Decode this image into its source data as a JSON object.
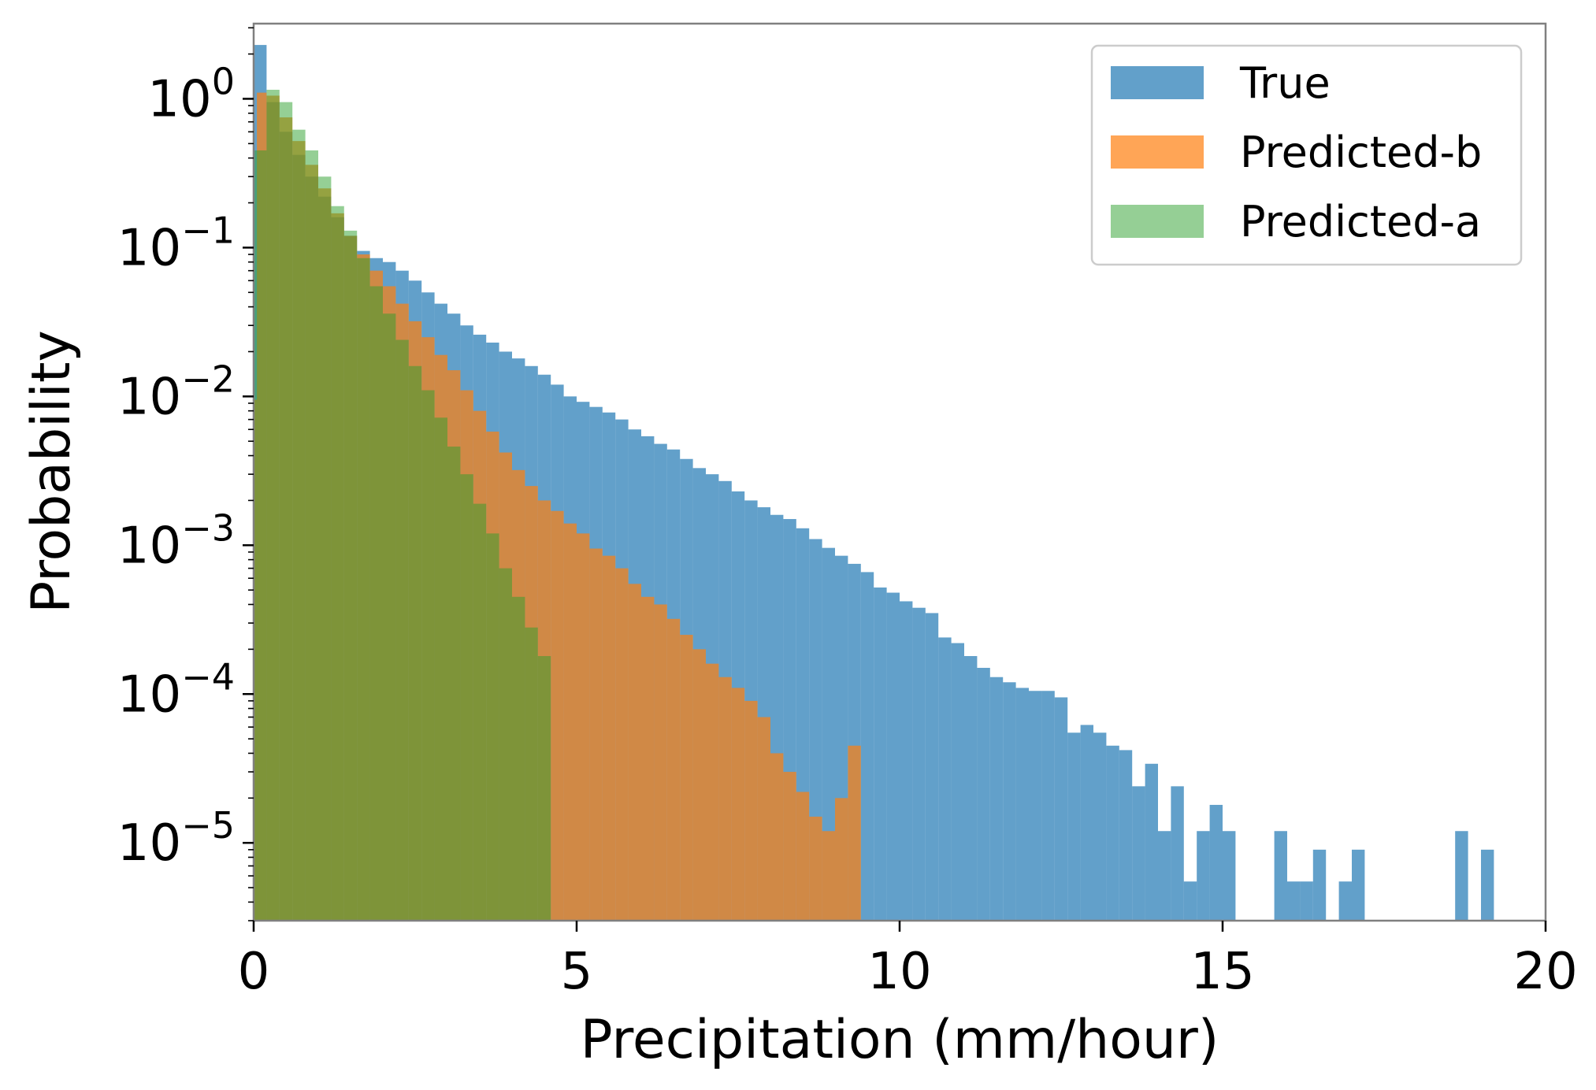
{
  "chart_data": {
    "type": "bar",
    "subtype": "histogram",
    "xlabel": "Precipitation (mm/hour)",
    "ylabel": "Probability",
    "xlim": [
      0,
      20
    ],
    "ylim": [
      3e-06,
      3.2
    ],
    "yscale": "log",
    "grid": false,
    "legend_position": "top-right",
    "x_ticks": [
      {
        "value": 0,
        "label": "0"
      },
      {
        "value": 5,
        "label": "5"
      },
      {
        "value": 10,
        "label": "10"
      },
      {
        "value": 15,
        "label": "15"
      },
      {
        "value": 20,
        "label": "20"
      }
    ],
    "y_ticks": [
      {
        "value": 1,
        "base": "10",
        "exp": "0"
      },
      {
        "value": 0.1,
        "base": "10",
        "exp": "−1"
      },
      {
        "value": 0.01,
        "base": "10",
        "exp": "−2"
      },
      {
        "value": 0.001,
        "base": "10",
        "exp": "−3"
      },
      {
        "value": 0.0001,
        "base": "10",
        "exp": "−4"
      },
      {
        "value": 1e-05,
        "base": "10",
        "exp": "−5"
      }
    ],
    "series": [
      {
        "name": "True",
        "color": "#1f77b4",
        "alpha": 0.7,
        "points": [
          [
            0.0,
            2.3
          ],
          [
            0.2,
            0.95
          ],
          [
            0.4,
            0.6
          ],
          [
            0.6,
            0.42
          ],
          [
            0.8,
            0.3
          ],
          [
            1.0,
            0.22
          ],
          [
            1.2,
            0.16
          ],
          [
            1.4,
            0.12
          ],
          [
            1.6,
            0.095
          ],
          [
            1.8,
            0.085
          ],
          [
            2.0,
            0.08
          ],
          [
            2.2,
            0.07
          ],
          [
            2.4,
            0.06
          ],
          [
            2.6,
            0.05
          ],
          [
            2.8,
            0.042
          ],
          [
            3.0,
            0.036
          ],
          [
            3.2,
            0.03
          ],
          [
            3.4,
            0.026
          ],
          [
            3.6,
            0.023
          ],
          [
            3.8,
            0.02
          ],
          [
            4.0,
            0.018
          ],
          [
            4.2,
            0.016
          ],
          [
            4.4,
            0.014
          ],
          [
            4.6,
            0.012
          ],
          [
            4.8,
            0.01
          ],
          [
            5.0,
            0.0092
          ],
          [
            5.2,
            0.0085
          ],
          [
            5.4,
            0.0078
          ],
          [
            5.6,
            0.007
          ],
          [
            5.8,
            0.006
          ],
          [
            6.0,
            0.0054
          ],
          [
            6.2,
            0.0048
          ],
          [
            6.4,
            0.0044
          ],
          [
            6.6,
            0.0038
          ],
          [
            6.8,
            0.0033
          ],
          [
            7.0,
            0.003
          ],
          [
            7.2,
            0.0027
          ],
          [
            7.4,
            0.0023
          ],
          [
            7.6,
            0.002
          ],
          [
            7.8,
            0.0018
          ],
          [
            8.0,
            0.0016
          ],
          [
            8.2,
            0.0015
          ],
          [
            8.4,
            0.0013
          ],
          [
            8.6,
            0.0011
          ],
          [
            8.8,
            0.00096
          ],
          [
            9.0,
            0.00085
          ],
          [
            9.2,
            0.00075
          ],
          [
            9.4,
            0.00066
          ],
          [
            9.6,
            0.00052
          ],
          [
            9.8,
            0.00048
          ],
          [
            10.0,
            0.00042
          ],
          [
            10.2,
            0.00038
          ],
          [
            10.4,
            0.00035
          ],
          [
            10.6,
            0.00024
          ],
          [
            10.8,
            0.00022
          ],
          [
            11.0,
            0.00018
          ],
          [
            11.2,
            0.00015
          ],
          [
            11.4,
            0.00013
          ],
          [
            11.6,
            0.00012
          ],
          [
            11.8,
            0.00011
          ],
          [
            12.0,
            0.000105
          ],
          [
            12.2,
            0.000105
          ],
          [
            12.4,
            9.5e-05
          ],
          [
            12.6,
            5.5e-05
          ],
          [
            12.8,
            6.2e-05
          ],
          [
            13.0,
            5.5e-05
          ],
          [
            13.2,
            4.5e-05
          ],
          [
            13.4,
            4.2e-05
          ],
          [
            13.6,
            2.4e-05
          ],
          [
            13.8,
            3.4e-05
          ],
          [
            14.0,
            1.2e-05
          ],
          [
            14.2,
            2.4e-05
          ],
          [
            14.4,
            5.5e-06
          ],
          [
            14.6,
            1.2e-05
          ],
          [
            14.8,
            1.8e-05
          ],
          [
            15.0,
            1.2e-05
          ],
          [
            15.8,
            1.2e-05
          ],
          [
            16.0,
            5.5e-06
          ],
          [
            16.2,
            5.5e-06
          ],
          [
            16.4,
            9e-06
          ],
          [
            16.6,
            0.0
          ],
          [
            16.8,
            5.5e-06
          ],
          [
            17.0,
            9e-06
          ],
          [
            18.6,
            1.2e-05
          ],
          [
            19.0,
            9e-06
          ]
        ],
        "bin_width": 0.2
      },
      {
        "name": "Predicted-b",
        "color": "#ff7f0e",
        "alpha": 0.7,
        "points": [
          [
            0.0,
            0.0095
          ],
          [
            0.05,
            1.1
          ],
          [
            0.2,
            1.05
          ],
          [
            0.4,
            0.75
          ],
          [
            0.6,
            0.52
          ],
          [
            0.8,
            0.36
          ],
          [
            1.0,
            0.25
          ],
          [
            1.2,
            0.17
          ],
          [
            1.4,
            0.12
          ],
          [
            1.6,
            0.09
          ],
          [
            1.8,
            0.07
          ],
          [
            2.0,
            0.055
          ],
          [
            2.2,
            0.042
          ],
          [
            2.4,
            0.032
          ],
          [
            2.6,
            0.025
          ],
          [
            2.8,
            0.019
          ],
          [
            3.0,
            0.015
          ],
          [
            3.2,
            0.011
          ],
          [
            3.4,
            0.008
          ],
          [
            3.6,
            0.0058
          ],
          [
            3.8,
            0.0042
          ],
          [
            4.0,
            0.0032
          ],
          [
            4.2,
            0.0025
          ],
          [
            4.4,
            0.002
          ],
          [
            4.6,
            0.0017
          ],
          [
            4.8,
            0.0014
          ],
          [
            5.0,
            0.0012
          ],
          [
            5.2,
            0.00095
          ],
          [
            5.4,
            0.00085
          ],
          [
            5.6,
            0.0007
          ],
          [
            5.8,
            0.00055
          ],
          [
            6.0,
            0.00045
          ],
          [
            6.2,
            0.0004
          ],
          [
            6.4,
            0.00032
          ],
          [
            6.6,
            0.00025
          ],
          [
            6.8,
            0.0002
          ],
          [
            7.0,
            0.00016
          ],
          [
            7.2,
            0.00013
          ],
          [
            7.4,
            0.00011
          ],
          [
            7.6,
            9e-05
          ],
          [
            7.8,
            7e-05
          ],
          [
            8.0,
            4e-05
          ],
          [
            8.2,
            3e-05
          ],
          [
            8.4,
            2.2e-05
          ],
          [
            8.6,
            1.5e-05
          ],
          [
            8.8,
            1.2e-05
          ],
          [
            9.0,
            2e-05
          ],
          [
            9.2,
            4.5e-05
          ]
        ],
        "bin_width": 0.2,
        "x_end": 9.4
      },
      {
        "name": "Predicted-a",
        "color": "#2ca02c",
        "alpha": 0.5,
        "points": [
          [
            0.0,
            0.45
          ],
          [
            0.2,
            1.15
          ],
          [
            0.4,
            0.95
          ],
          [
            0.6,
            0.62
          ],
          [
            0.8,
            0.45
          ],
          [
            1.0,
            0.3
          ],
          [
            1.2,
            0.19
          ],
          [
            1.4,
            0.13
          ],
          [
            1.6,
            0.085
          ],
          [
            1.8,
            0.055
          ],
          [
            2.0,
            0.036
          ],
          [
            2.2,
            0.024
          ],
          [
            2.4,
            0.016
          ],
          [
            2.6,
            0.011
          ],
          [
            2.8,
            0.0072
          ],
          [
            3.0,
            0.0046
          ],
          [
            3.2,
            0.003
          ],
          [
            3.4,
            0.0019
          ],
          [
            3.6,
            0.0012
          ],
          [
            3.8,
            0.0007
          ],
          [
            4.0,
            0.00045
          ],
          [
            4.2,
            0.00028
          ],
          [
            4.4,
            0.00018
          ]
        ],
        "bin_width": 0.2,
        "x_end": 4.6
      }
    ],
    "legend": [
      {
        "label": "True",
        "color": "#1f77b4",
        "alpha": 0.7
      },
      {
        "label": "Predicted-b",
        "color": "#ff7f0e",
        "alpha": 0.7
      },
      {
        "label": "Predicted-a",
        "color": "#2ca02c",
        "alpha": 0.5
      }
    ]
  }
}
